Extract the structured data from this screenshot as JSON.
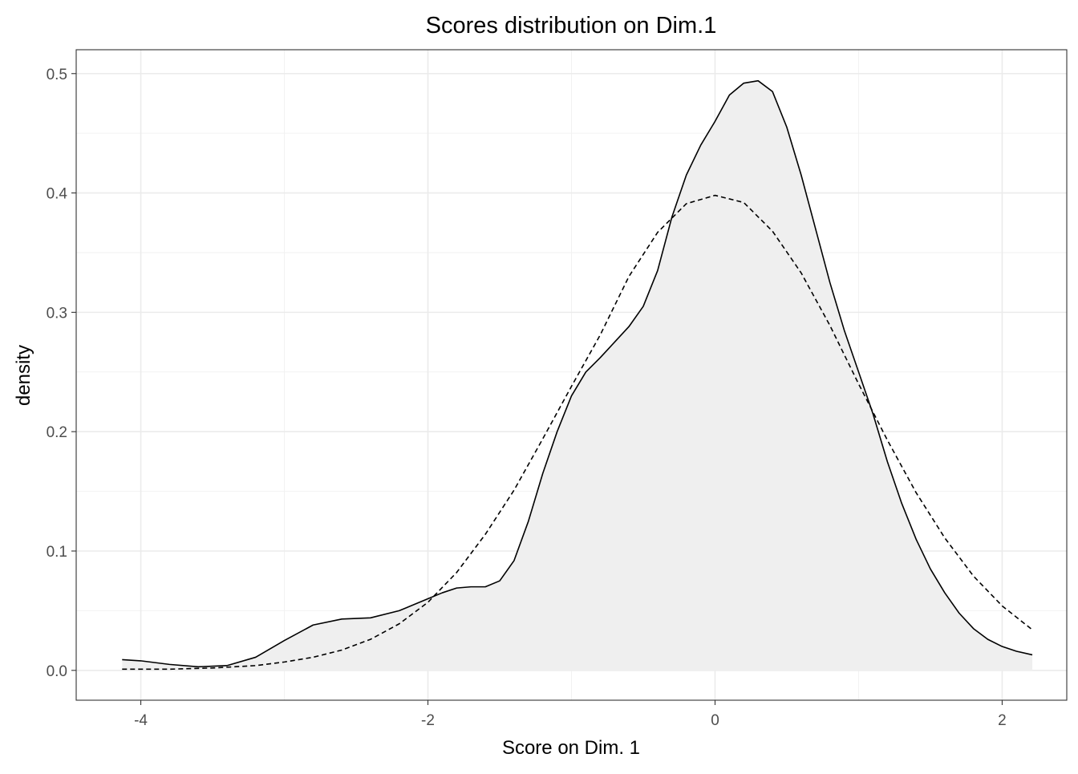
{
  "chart_data": {
    "type": "area",
    "title": "Scores distribution on Dim.1",
    "xlabel": "Score on Dim. 1",
    "ylabel": "density",
    "xlim": [
      -4.45,
      2.45
    ],
    "ylim": [
      -0.025,
      0.52
    ],
    "x_ticks": [
      -4,
      -2,
      0,
      2
    ],
    "x_tick_labels": [
      "-4",
      "-2",
      "0",
      "2"
    ],
    "y_ticks": [
      0.0,
      0.1,
      0.2,
      0.3,
      0.4,
      0.5
    ],
    "y_tick_labels": [
      "0.0",
      "0.1",
      "0.2",
      "0.3",
      "0.4",
      "0.5"
    ],
    "grid": true,
    "series": [
      {
        "style": "solid-filled",
        "x": [
          -4.13,
          -4.0,
          -3.8,
          -3.6,
          -3.4,
          -3.2,
          -3.0,
          -2.8,
          -2.6,
          -2.4,
          -2.2,
          -2.0,
          -1.9,
          -1.8,
          -1.7,
          -1.6,
          -1.5,
          -1.4,
          -1.3,
          -1.2,
          -1.1,
          -1.0,
          -0.9,
          -0.8,
          -0.7,
          -0.6,
          -0.5,
          -0.4,
          -0.3,
          -0.2,
          -0.1,
          0.0,
          0.1,
          0.2,
          0.3,
          0.4,
          0.5,
          0.6,
          0.7,
          0.8,
          0.9,
          1.0,
          1.1,
          1.2,
          1.3,
          1.4,
          1.5,
          1.6,
          1.7,
          1.8,
          1.9,
          2.0,
          2.1,
          2.21
        ],
        "values": [
          0.009,
          0.008,
          0.005,
          0.003,
          0.004,
          0.011,
          0.025,
          0.038,
          0.043,
          0.044,
          0.05,
          0.06,
          0.065,
          0.069,
          0.07,
          0.07,
          0.075,
          0.092,
          0.125,
          0.165,
          0.2,
          0.23,
          0.25,
          0.262,
          0.275,
          0.288,
          0.305,
          0.335,
          0.38,
          0.415,
          0.44,
          0.46,
          0.482,
          0.492,
          0.494,
          0.485,
          0.455,
          0.415,
          0.37,
          0.325,
          0.285,
          0.25,
          0.215,
          0.175,
          0.14,
          0.11,
          0.085,
          0.065,
          0.048,
          0.035,
          0.026,
          0.02,
          0.016,
          0.013
        ]
      },
      {
        "style": "dashed",
        "x": [
          -4.13,
          -3.8,
          -3.5,
          -3.2,
          -3.0,
          -2.8,
          -2.6,
          -2.4,
          -2.2,
          -2.0,
          -1.8,
          -1.6,
          -1.4,
          -1.2,
          -1.0,
          -0.8,
          -0.6,
          -0.4,
          -0.2,
          0.0,
          0.2,
          0.4,
          0.6,
          0.8,
          1.0,
          1.2,
          1.4,
          1.6,
          1.8,
          2.0,
          2.21
        ],
        "values": [
          0.001,
          0.001,
          0.002,
          0.004,
          0.007,
          0.011,
          0.017,
          0.026,
          0.039,
          0.057,
          0.082,
          0.114,
          0.151,
          0.194,
          0.238,
          0.281,
          0.33,
          0.367,
          0.391,
          0.398,
          0.392,
          0.368,
          0.333,
          0.289,
          0.24,
          0.193,
          0.149,
          0.111,
          0.079,
          0.054,
          0.034
        ]
      }
    ]
  }
}
